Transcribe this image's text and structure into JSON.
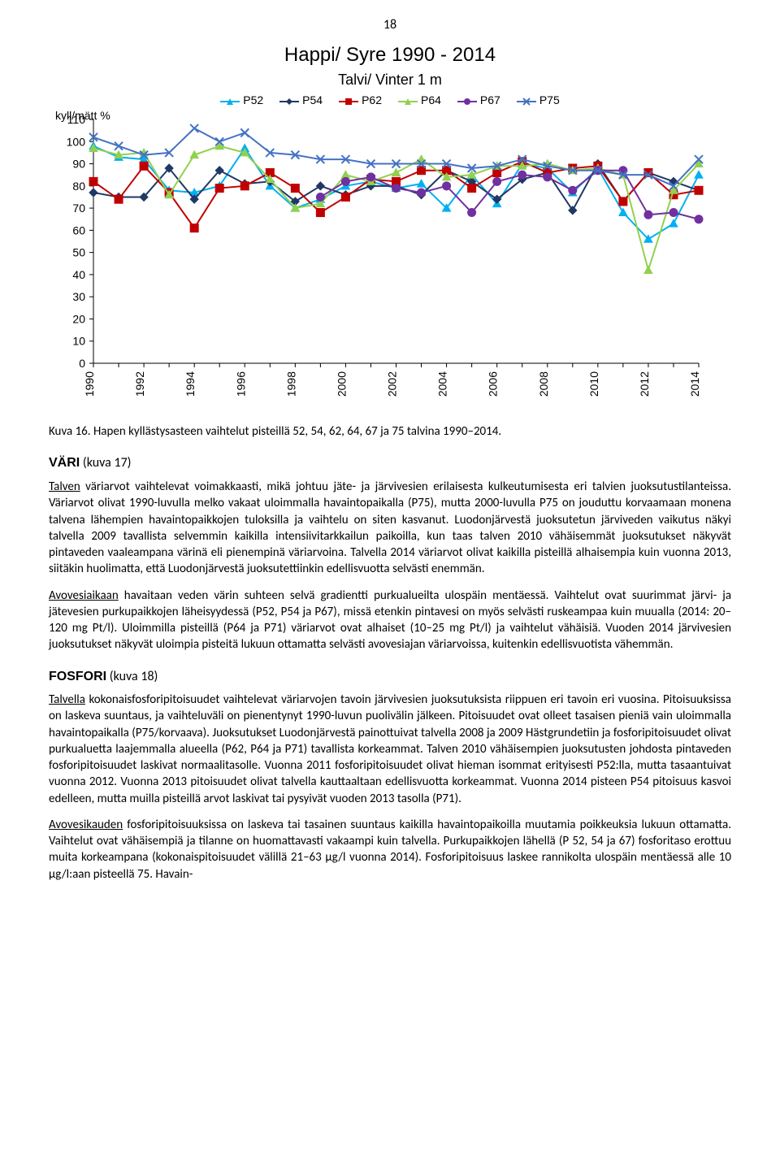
{
  "pageNumber": "18",
  "chart": {
    "type": "line",
    "title": "Happi/ Syre  1990 - 2014",
    "subtitle": "Talvi/ Vinter  1 m",
    "ylabel": "kyll/mätt %",
    "ylim": [
      0,
      110
    ],
    "ytick_step": 10,
    "xyears": [
      1990,
      1992,
      1994,
      1996,
      1998,
      2000,
      2002,
      2004,
      2006,
      2008,
      2010,
      2012,
      2014
    ],
    "grid_color": "#bfbfbf",
    "background_color": "#ffffff",
    "label_fontsize": 14,
    "line_width": 2,
    "marker_size": 5,
    "series": [
      {
        "name": "P52",
        "color": "#00b0f0",
        "marker": "triangle",
        "data": {
          "1990": 98,
          "1991": 93,
          "1992": 92,
          "1993": 78,
          "1994": 77,
          "1995": 80,
          "1996": 97,
          "1997": 80,
          "1998": 70,
          "1999": 74,
          "2000": 80,
          "2001": 82,
          "2002": 79,
          "2003": 81,
          "2004": 70,
          "2005": 85,
          "2006": 72,
          "2007": 90,
          "2008": 88,
          "2009": 77,
          "2010": 88,
          "2011": 68,
          "2012": 56,
          "2013": 63,
          "2014": 85
        }
      },
      {
        "name": "P54",
        "color": "#203864",
        "marker": "diamond",
        "data": {
          "1990": 77,
          "1991": 75,
          "1992": 75,
          "1993": 88,
          "1994": 74,
          "1995": 87,
          "1996": 81,
          "1997": 82,
          "1998": 73,
          "1999": 80,
          "2000": 76,
          "2001": 80,
          "2002": 80,
          "2003": 76,
          "2004": 87,
          "2005": 82,
          "2006": 74,
          "2007": 83,
          "2008": 86,
          "2009": 69,
          "2010": 90,
          "2011": 73,
          "2012": 86,
          "2013": 82,
          "2014": 78
        }
      },
      {
        "name": "P62",
        "color": "#c00000",
        "marker": "square",
        "data": {
          "1990": 82,
          "1991": 74,
          "1992": 89,
          "1993": 77,
          "1994": 61,
          "1995": 79,
          "1996": 80,
          "1997": 86,
          "1998": 79,
          "1999": 68,
          "2000": 75,
          "2001": 83,
          "2002": 82,
          "2003": 87,
          "2004": 87,
          "2005": 79,
          "2006": 86,
          "2007": 91,
          "2008": 86,
          "2009": 88,
          "2010": 89,
          "2011": 73,
          "2012": 86,
          "2013": 76,
          "2014": 78
        }
      },
      {
        "name": "P64",
        "color": "#92d050",
        "marker": "triangle",
        "data": {
          "1990": 97,
          "1991": 94,
          "1992": 95,
          "1993": 76,
          "1994": 94,
          "1995": 98,
          "1996": 95,
          "1997": 83,
          "1998": 70,
          "1999": 72,
          "2000": 85,
          "2001": 82,
          "2002": 86,
          "2003": 92,
          "2004": 84,
          "2005": 85,
          "2006": 89,
          "2007": 89,
          "2008": 90,
          "2009": 87,
          "2010": 88,
          "2011": 85,
          "2012": 42,
          "2013": 78,
          "2014": 90
        }
      },
      {
        "name": "P67",
        "color": "#7030a0",
        "marker": "circle",
        "data": {
          "1999": 75,
          "2000": 82,
          "2001": 84,
          "2002": 79,
          "2003": 77,
          "2004": 80,
          "2005": 68,
          "2006": 82,
          "2007": 85,
          "2008": 84,
          "2009": 78,
          "2010": 87,
          "2011": 87,
          "2012": 67,
          "2013": 68,
          "2014": 65
        }
      },
      {
        "name": "P75",
        "color": "#4472c4",
        "marker": "x",
        "data": {
          "1990": 102,
          "1991": 98,
          "1992": 94,
          "1993": 95,
          "1994": 106,
          "1995": 100,
          "1996": 104,
          "1997": 95,
          "1998": 94,
          "1999": 92,
          "2000": 92,
          "2001": 90,
          "2002": 90,
          "2003": 90,
          "2004": 90,
          "2005": 88,
          "2006": 89,
          "2007": 92,
          "2008": 89,
          "2009": 87,
          "2010": 87,
          "2011": 85,
          "2012": 85,
          "2013": 80,
          "2014": 92
        }
      }
    ]
  },
  "caption": "Kuva 16. Hapen kyllästysasteen vaihtelut pisteillä 52, 54, 62, 64, 67 ja 75 talvina 1990–2014.",
  "sections": {
    "vari": {
      "head_bold": "VÄRI",
      "head_plain": " (kuva 17)",
      "p1_u": "Talven",
      "p1_rest": " väriarvot vaihtelevat voimakkaasti, mikä johtuu jäte- ja järvivesien erilaisesta kulkeutumisesta eri talvien juoksutustilanteissa. Väriarvot olivat 1990-luvulla melko vakaat uloimmalla havaintopaikalla (P75), mutta 2000-luvulla P75 on jouduttu korvaamaan monena talvena lähempien havaintopaikkojen tuloksilla ja vaihtelu on siten kasvanut. Luodonjärvestä juoksutetun järviveden vaikutus näkyi talvella 2009 tavallista selvemmin kaikilla intensiivitarkkailun paikoilla, kun taas talven 2010 vähäisemmät juoksutukset näkyvät pintaveden vaaleampana värinä eli pienempinä väriarvoina. Talvella 2014 väriarvot olivat kaikilla pisteillä alhaisempia kuin vuonna 2013, siitäkin huolimatta, että Luodonjärvestä juoksutettiinkin edellisvuotta selvästi enemmän.",
      "p2_u": "Avovesiaikaan",
      "p2_rest": " havaitaan veden värin suhteen selvä gradientti purkualueilta ulospäin mentäessä. Vaihtelut ovat suurimmat järvi- ja jätevesien purkupaikkojen läheisyydessä (P52, P54 ja P67), missä etenkin pintavesi on myös selvästi ruskeampaa kuin muualla (2014: 20–120 mg Pt/l). Uloimmilla pisteillä (P64 ja P71) väriarvot ovat alhaiset (10–25 mg Pt/l) ja vaihtelut vähäisiä. Vuoden 2014 järvivesien juoksutukset näkyvät uloimpia pisteitä lukuun ottamatta selvästi avovesiajan väriarvoissa, kuitenkin edellisvuotista vähemmän."
    },
    "fosfori": {
      "head_bold": "FOSFORI",
      "head_plain": " (kuva 18)",
      "p1_u": "Talvella",
      "p1_rest": " kokonaisfosforipitoisuudet vaihtelevat väriarvojen tavoin järvivesien juoksutuksista riippuen eri tavoin eri vuosina. Pitoisuuksissa on laskeva suuntaus, ja vaihteluväli on pienentynyt 1990-luvun puolivälin jälkeen. Pitoisuudet ovat olleet tasaisen pieniä vain uloimmalla havaintopaikalla (P75/korvaava). Juoksutukset Luodonjärvestä painottuivat talvella 2008 ja 2009 Hästgrundetiin ja fosforipitoisuudet olivat purkualuetta laajemmalla alueella (P62, P64 ja P71) tavallista korkeammat. Talven 2010 vähäisempien juoksutusten johdosta pintaveden fosforipitoisuudet laskivat normaalitasolle. Vuonna 2011 fosforipitoisuudet olivat hieman isommat erityisesti P52:lla, mutta tasaantuivat vuonna 2012. Vuonna 2013 pitoisuudet olivat talvella kauttaaltaan edellisvuotta korkeammat. Vuonna 2014 pisteen P54 pitoisuus kasvoi edelleen, mutta muilla pisteillä arvot laskivat tai pysyivät vuoden 2013 tasolla (P71).",
      "p2_u": "Avovesikauden",
      "p2_rest": " fosforipitoisuuksissa on laskeva tai tasainen suuntaus kaikilla havaintopaikoilla muutamia poikkeuksia lukuun ottamatta. Vaihtelut ovat vähäisempiä ja tilanne on huomattavasti vakaampi kuin talvella. Purkupaikkojen lähellä (P 52, 54 ja 67) fosforitaso erottuu muita korkeampana (kokonaispitoisuudet välillä 21–63 µg/l vuonna 2014). Fosforipitoisuus laskee rannikolta ulospäin mentäessä alle 10 µg/l:aan pisteellä 75. Havain-"
    }
  }
}
